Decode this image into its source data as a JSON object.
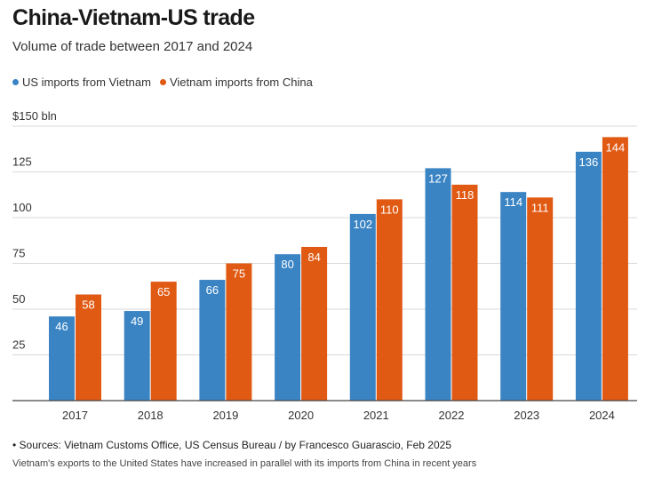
{
  "title": "China-Vietnam-US trade",
  "subtitle": "Volume of trade between 2017 and 2024",
  "legend": [
    {
      "label": "US imports from Vietnam",
      "color": "#3a84c4"
    },
    {
      "label": "Vietnam imports from China",
      "color": "#e15a13"
    }
  ],
  "chart_data": {
    "type": "bar",
    "categories": [
      "2017",
      "2018",
      "2019",
      "2020",
      "2021",
      "2022",
      "2023",
      "2024"
    ],
    "series": [
      {
        "name": "US imports from Vietnam",
        "color": "#3a84c4",
        "values": [
          46,
          49,
          66,
          80,
          102,
          127,
          114,
          136
        ]
      },
      {
        "name": "Vietnam imports from China",
        "color": "#e15a13",
        "values": [
          58,
          65,
          75,
          84,
          110,
          118,
          111,
          144
        ]
      }
    ],
    "ylim": [
      0,
      150
    ],
    "yticks": [
      25,
      50,
      75,
      100,
      125,
      150
    ],
    "ytick_labels": [
      "25",
      "50",
      "75",
      "100",
      "125",
      "$150 bln"
    ],
    "grid": true
  },
  "footer": {
    "source": "• Sources: Vietnam Customs Office, US Census Bureau / by Francesco Guarascio, Feb 2025",
    "note": "Vietnam's exports to the United States have increased in parallel with its imports from China in recent years"
  }
}
